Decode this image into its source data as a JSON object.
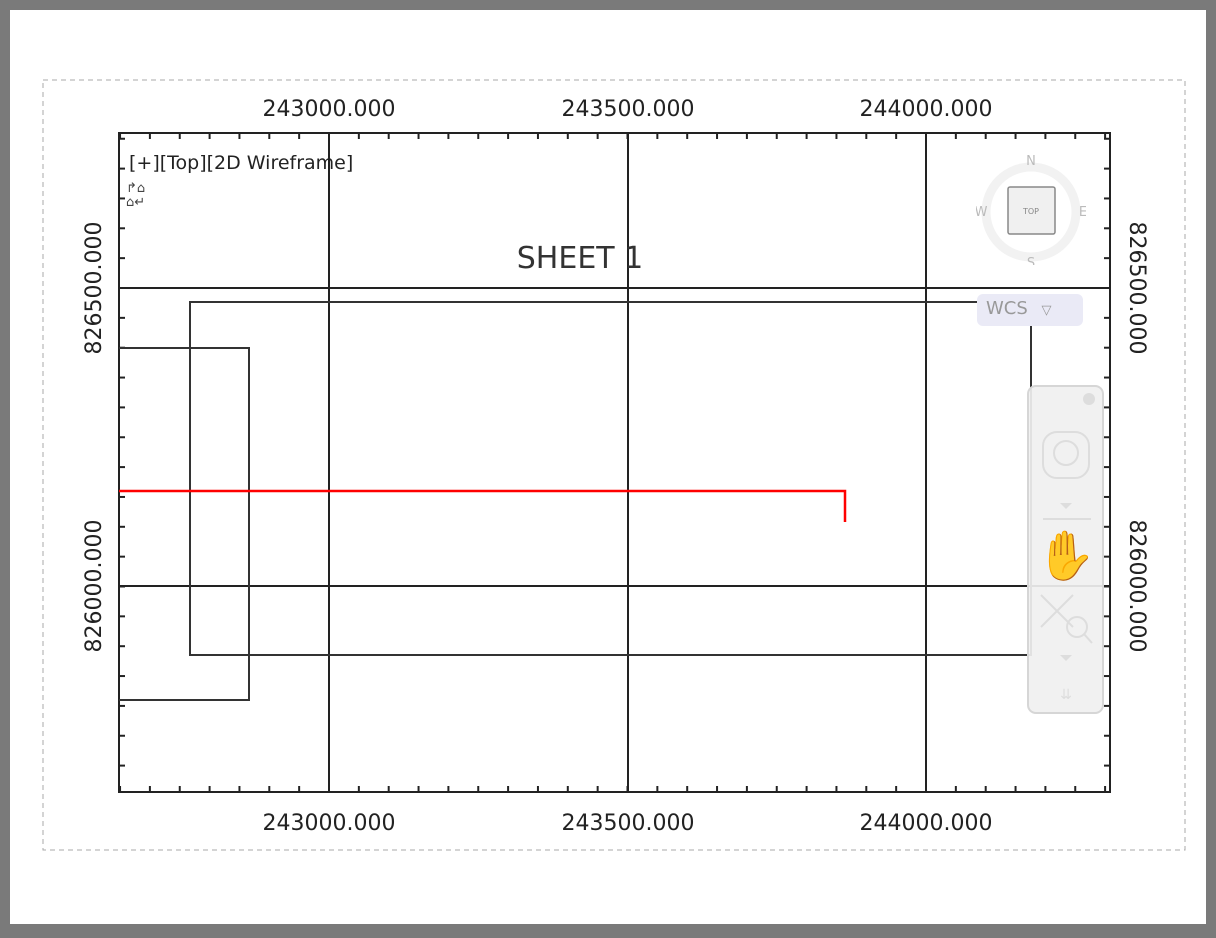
{
  "viewport": {
    "label": "[+][Top][2D Wireframe]"
  },
  "drawing": {
    "sheet_title": "SHEET  1"
  },
  "axes": {
    "x_labels": [
      "243000.000",
      "243500.000",
      "244000.000"
    ],
    "y_labels": [
      "826500.000",
      "826000.000"
    ]
  },
  "viewcube": {
    "face": "TOP",
    "north": "N",
    "south": "S",
    "east": "E",
    "west": "W"
  },
  "ucs": {
    "label": "WCS",
    "icon": "ucs-icon"
  },
  "navbar": {
    "tools": [
      "steering-wheel-icon",
      "pan-hand-icon",
      "zoom-extents-icon"
    ]
  },
  "colors": {
    "polyline": "#ff0000",
    "geometry": "#222222"
  }
}
